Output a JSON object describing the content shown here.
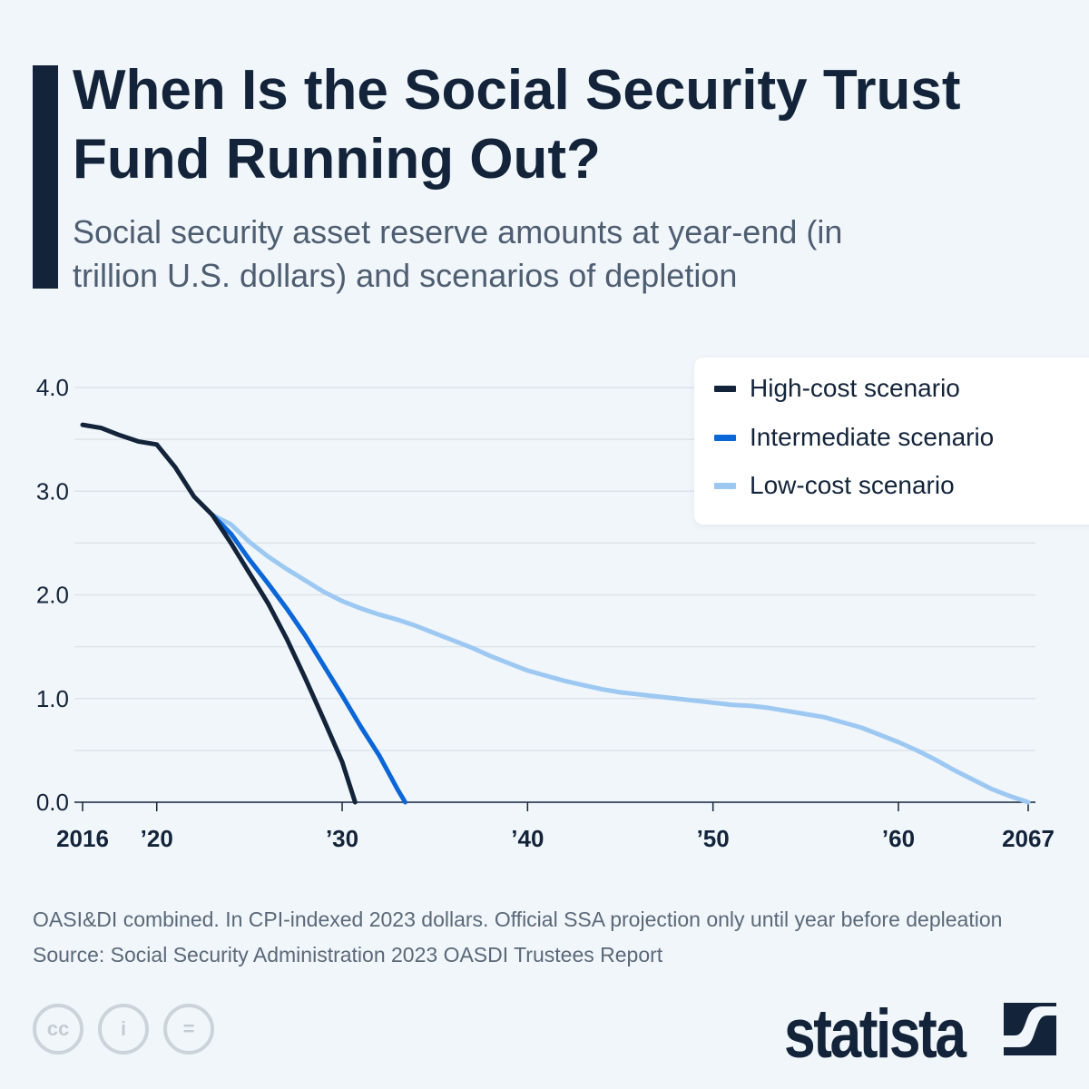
{
  "header": {
    "title": "When Is the Social Security Trust Fund Running Out?",
    "subtitle": "Social security asset reserve amounts at year-end (in trillion U.S. dollars) and scenarios of depletion"
  },
  "footer": {
    "note": "OASI&DI combined. In CPI-indexed 2023 dollars. Official SSA projection only until year before depleation",
    "source": "Source: Social Security Administration 2023 OASDI Trustees Report",
    "brand": "statista",
    "license_icons": [
      "cc-icon",
      "attribution-icon",
      "no-derivatives-icon"
    ]
  },
  "chart_data": {
    "type": "line",
    "ylim": [
      0,
      4
    ],
    "xlim": [
      2016,
      2067
    ],
    "grid": true,
    "legend_position": "top-right",
    "y_ticks": [
      {
        "v": 0,
        "label": "0.0"
      },
      {
        "v": 1,
        "label": "1.0"
      },
      {
        "v": 2,
        "label": "2.0"
      },
      {
        "v": 3,
        "label": "3.0"
      },
      {
        "v": 4,
        "label": "4.0"
      }
    ],
    "x_ticks": [
      {
        "v": 2016,
        "label": "2016"
      },
      {
        "v": 2020,
        "label": "’20"
      },
      {
        "v": 2030,
        "label": "’30"
      },
      {
        "v": 2040,
        "label": "’40"
      },
      {
        "v": 2050,
        "label": "’50"
      },
      {
        "v": 2060,
        "label": "’60"
      },
      {
        "v": 2067,
        "label": "2067"
      }
    ],
    "historical": {
      "color": "#13243a",
      "x": [
        2016,
        2017,
        2018,
        2019,
        2020,
        2021,
        2022,
        2023
      ],
      "y": [
        3.64,
        3.61,
        3.54,
        3.48,
        3.45,
        3.23,
        2.95,
        2.77
      ]
    },
    "series": [
      {
        "name": "High-cost scenario",
        "color": "#13243a",
        "x": [
          2023,
          2024,
          2025,
          2026,
          2027,
          2028,
          2029,
          2030,
          2030.7
        ],
        "y": [
          2.77,
          2.5,
          2.21,
          1.92,
          1.58,
          1.2,
          0.8,
          0.39,
          0
        ]
      },
      {
        "name": "Intermediate scenario",
        "color": "#0b66d8",
        "x": [
          2023,
          2024,
          2025,
          2026,
          2027,
          2028,
          2029,
          2030,
          2031,
          2032,
          2033,
          2033.4
        ],
        "y": [
          2.77,
          2.59,
          2.34,
          2.11,
          1.87,
          1.61,
          1.32,
          1.03,
          0.73,
          0.45,
          0.12,
          0
        ]
      },
      {
        "name": "Low-cost scenario",
        "color": "#9cc8f2",
        "x": [
          2023,
          2024,
          2025,
          2026,
          2027,
          2028,
          2029,
          2030,
          2031,
          2032,
          2033,
          2034,
          2035,
          2036,
          2037,
          2038,
          2039,
          2040,
          2041,
          2042,
          2043,
          2044,
          2045,
          2046,
          2047,
          2048,
          2049,
          2050,
          2051,
          2052,
          2053,
          2054,
          2055,
          2056,
          2057,
          2058,
          2059,
          2060,
          2061,
          2062,
          2063,
          2064,
          2065,
          2066,
          2067
        ],
        "y": [
          2.77,
          2.68,
          2.51,
          2.37,
          2.25,
          2.14,
          2.03,
          1.94,
          1.87,
          1.81,
          1.76,
          1.7,
          1.63,
          1.56,
          1.49,
          1.41,
          1.34,
          1.27,
          1.22,
          1.17,
          1.13,
          1.09,
          1.06,
          1.04,
          1.02,
          1.0,
          0.98,
          0.96,
          0.94,
          0.93,
          0.91,
          0.88,
          0.85,
          0.82,
          0.77,
          0.72,
          0.65,
          0.58,
          0.5,
          0.41,
          0.31,
          0.22,
          0.13,
          0.06,
          0
        ]
      }
    ]
  }
}
